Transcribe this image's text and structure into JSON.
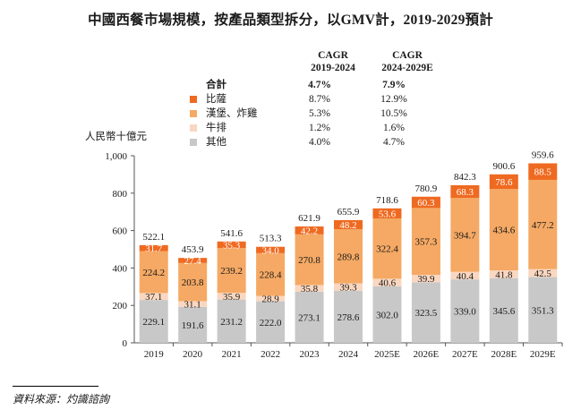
{
  "title": "中國西餐市場規模，按產品類型拆分，以GMV計，2019-2029預計",
  "legend": {
    "col1_header_line1": "CAGR",
    "col1_header_line2": "2019-2024",
    "col2_header_line1": "CAGR",
    "col2_header_line2": "2024-2029E",
    "rows": [
      {
        "name": "合計",
        "c1": "4.7%",
        "c2": "7.9%",
        "color": ""
      },
      {
        "name": "比薩",
        "c1": "8.7%",
        "c2": "12.9%",
        "color": "#ef6a21"
      },
      {
        "name": "漢堡、炸雞",
        "c1": "5.3%",
        "c2": "10.5%",
        "color": "#f5a964"
      },
      {
        "name": "牛排",
        "c1": "1.2%",
        "c2": "1.6%",
        "color": "#fad7c0"
      },
      {
        "name": "其他",
        "c1": "4.0%",
        "c2": "4.7%",
        "color": "#c8c8c8"
      }
    ]
  },
  "unit_label": "人民幣十億元",
  "source": "資料來源：灼識諮詢",
  "chart_data": {
    "type": "bar",
    "stacked": true,
    "categories": [
      "2019",
      "2020",
      "2021",
      "2022",
      "2023",
      "2024",
      "2025E",
      "2026E",
      "2027E",
      "2028E",
      "2029E"
    ],
    "series": [
      {
        "name": "其他",
        "color": "#c8c8c8",
        "labels": [
          "229.1",
          "191.6",
          "231.2",
          "222.0",
          "273.1",
          "278.6",
          "302.0",
          "323.5",
          "339.0",
          "345.6",
          "351.3"
        ],
        "values": [
          229.1,
          191.6,
          231.2,
          222.0,
          273.1,
          278.6,
          302.0,
          323.5,
          339.0,
          345.6,
          351.3
        ]
      },
      {
        "name": "牛排",
        "color": "#fad7c0",
        "labels": [
          "37.1",
          "31.1",
          "35.9",
          "28.9",
          "35.8",
          "39.3",
          "40.6",
          "39.9",
          "40.4",
          "41.8",
          "42.5"
        ],
        "values": [
          37.1,
          31.1,
          35.9,
          28.9,
          35.8,
          39.3,
          40.6,
          39.9,
          40.4,
          41.8,
          42.5
        ]
      },
      {
        "name": "漢堡、炸雞",
        "color": "#f5a964",
        "labels": [
          "224.2",
          "203.8",
          "239.2",
          "228.4",
          "270.8",
          "289.8",
          "322.4",
          "357.3",
          "394.7",
          "434.6",
          "477.2"
        ],
        "values": [
          224.2,
          203.8,
          239.2,
          228.4,
          270.8,
          289.8,
          322.4,
          357.3,
          394.7,
          434.6,
          477.2
        ]
      },
      {
        "name": "比薩",
        "color": "#ef6a21",
        "labels": [
          "31.7",
          "27.4",
          "35.3",
          "34.0",
          "42.2",
          "48.2",
          "53.6",
          "60.3",
          "68.3",
          "78.6",
          "88.5"
        ],
        "values": [
          31.7,
          27.4,
          35.3,
          34.0,
          42.2,
          48.2,
          53.6,
          60.3,
          68.3,
          78.6,
          88.5
        ]
      }
    ],
    "total_labels": [
      "522.1",
      "453.9",
      "541.6",
      "513.3",
      "621.9",
      "655.9",
      "718.6",
      "780.9",
      "842.3",
      "900.6",
      "959.6"
    ],
    "totals": [
      522.1,
      453.9,
      541.6,
      513.3,
      621.9,
      655.9,
      718.6,
      780.9,
      842.3,
      900.6,
      959.6
    ],
    "ylim": [
      0,
      1000
    ],
    "yticks": [
      0,
      200,
      400,
      600,
      800,
      1000
    ],
    "ytick_labels": [
      "0",
      "200",
      "400",
      "600",
      "800",
      "1,000"
    ],
    "ylabel": "人民幣十億元",
    "xlabel": "",
    "grid": false
  }
}
